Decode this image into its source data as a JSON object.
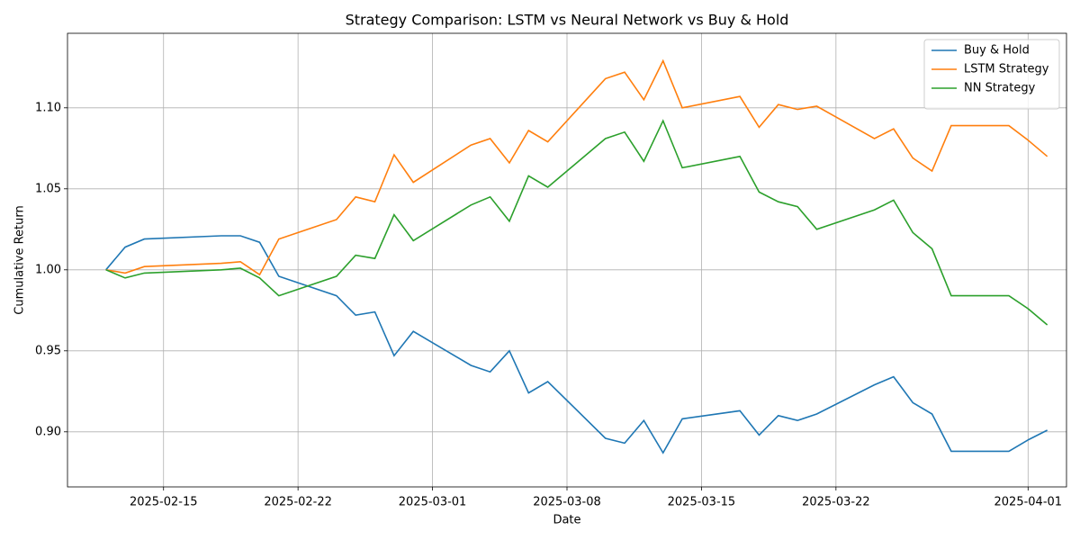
{
  "chart_data": {
    "type": "line",
    "title": "Strategy Comparison: LSTM vs Neural Network vs Buy & Hold",
    "xlabel": "Date",
    "ylabel": "Cumulative Return",
    "x": [
      "2025-02-12",
      "2025-02-13",
      "2025-02-14",
      "2025-02-18",
      "2025-02-19",
      "2025-02-20",
      "2025-02-21",
      "2025-02-24",
      "2025-02-25",
      "2025-02-26",
      "2025-02-27",
      "2025-02-28",
      "2025-03-03",
      "2025-03-04",
      "2025-03-05",
      "2025-03-06",
      "2025-03-07",
      "2025-03-10",
      "2025-03-11",
      "2025-03-12",
      "2025-03-13",
      "2025-03-14",
      "2025-03-17",
      "2025-03-18",
      "2025-03-19",
      "2025-03-20",
      "2025-03-21",
      "2025-03-24",
      "2025-03-25",
      "2025-03-26",
      "2025-03-27",
      "2025-03-28",
      "2025-03-31",
      "2025-04-01",
      "2025-04-02"
    ],
    "series": [
      {
        "name": "Buy & Hold",
        "color": "#1f77b4",
        "values": [
          1.0,
          1.014,
          1.019,
          1.021,
          1.021,
          1.017,
          0.996,
          0.984,
          0.972,
          0.974,
          0.947,
          0.962,
          0.941,
          0.937,
          0.95,
          0.924,
          0.931,
          0.896,
          0.893,
          0.907,
          0.887,
          0.908,
          0.913,
          0.898,
          0.91,
          0.907,
          0.911,
          0.929,
          0.934,
          0.918,
          0.911,
          0.888,
          0.888,
          0.895,
          0.901
        ]
      },
      {
        "name": "LSTM Strategy",
        "color": "#ff7f0e",
        "values": [
          1.0,
          0.998,
          1.002,
          1.004,
          1.005,
          0.997,
          1.019,
          1.031,
          1.045,
          1.042,
          1.071,
          1.054,
          1.077,
          1.081,
          1.066,
          1.086,
          1.079,
          1.118,
          1.122,
          1.105,
          1.129,
          1.1,
          1.107,
          1.088,
          1.102,
          1.099,
          1.101,
          1.081,
          1.087,
          1.069,
          1.061,
          1.089,
          1.089,
          1.08,
          1.07
        ]
      },
      {
        "name": "NN Strategy",
        "color": "#2ca02c",
        "values": [
          1.0,
          0.995,
          0.998,
          1.0,
          1.001,
          0.995,
          0.984,
          0.996,
          1.009,
          1.007,
          1.034,
          1.018,
          1.04,
          1.045,
          1.03,
          1.058,
          1.051,
          1.081,
          1.085,
          1.067,
          1.092,
          1.063,
          1.07,
          1.048,
          1.042,
          1.039,
          1.025,
          1.037,
          1.043,
          1.023,
          1.013,
          0.984,
          0.984,
          0.976,
          0.966
        ]
      }
    ],
    "xlim": [
      "2025-02-10",
      "2025-04-03"
    ],
    "xticks": [
      "2025-02-15",
      "2025-02-22",
      "2025-03-01",
      "2025-03-08",
      "2025-03-15",
      "2025-03-22",
      "2025-04-01"
    ],
    "ylim": [
      0.866,
      1.146
    ],
    "yticks": [
      {
        "value": 0.9,
        "label": "0.90"
      },
      0.95,
      {
        "value": 1.0,
        "label": "1.00"
      },
      1.05,
      {
        "value": 1.1,
        "label": "1.10"
      }
    ],
    "grid": true,
    "legend": "upper right"
  }
}
